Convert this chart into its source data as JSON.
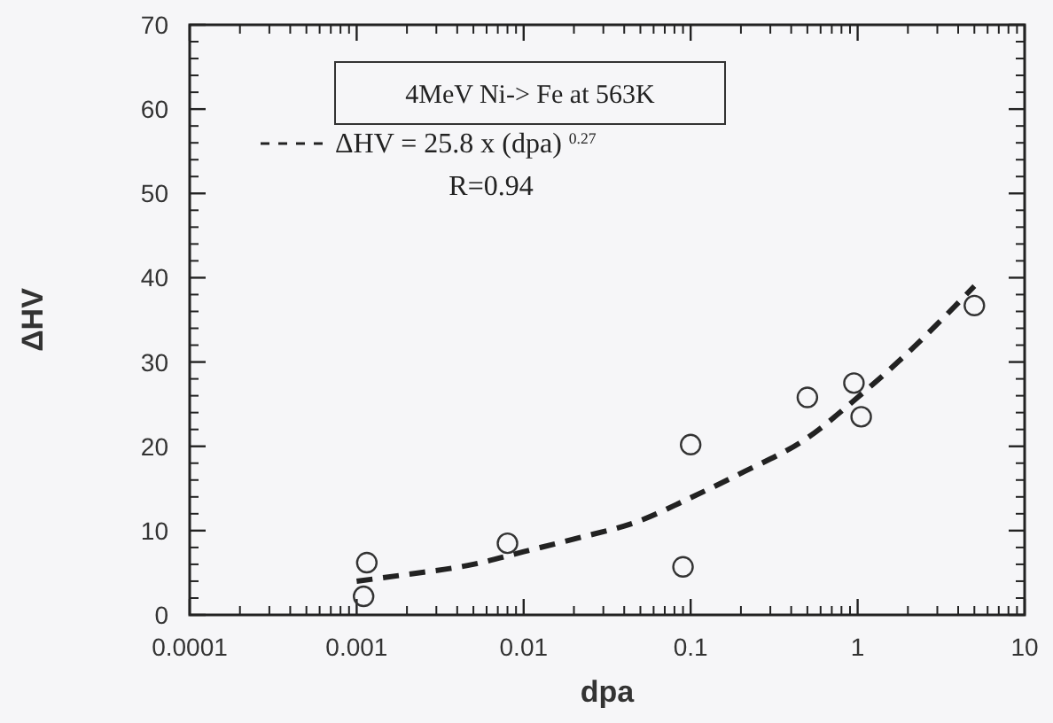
{
  "chart_data": {
    "type": "scatter",
    "xlabel": "dpa",
    "ylabel": "ΔHV",
    "log": "x",
    "xlim": [
      0.0001,
      10
    ],
    "xticks": [
      0.0001,
      0.001,
      0.01,
      0.1,
      1,
      10
    ],
    "ylim": [
      0,
      70
    ],
    "yticks": [
      0,
      10,
      20,
      30,
      40,
      50,
      60,
      70
    ],
    "grid": false,
    "legend": "top left",
    "annotations": [
      "4MeV Ni-> Fe at 563K",
      "R=0.94"
    ],
    "series": [
      {
        "color": "#333333",
        "marker": "circle",
        "x": [
          0.0011,
          0.00115,
          0.008,
          0.09,
          0.1,
          0.5,
          0.95,
          1.05,
          5
        ],
        "values": [
          2.2,
          6.2,
          8.5,
          5.7,
          20.2,
          25.8,
          27.5,
          23.5,
          36.7
        ]
      },
      {
        "type": "line",
        "name": "ΔHV = 25.8 x (dpa)$^{0.27}$",
        "color": "#222222",
        "marker": "none",
        "line_style": "dashed",
        "x": [
          0.001,
          0.002,
          0.005,
          0.01,
          0.02,
          0.05,
          0.1,
          0.2,
          0.5,
          1,
          2,
          5
        ],
        "values": [
          4.0,
          4.8,
          6.0,
          7.5,
          9.0,
          11.2,
          13.9,
          16.8,
          21.0,
          25.8,
          31.1,
          39.0
        ]
      }
    ]
  }
}
